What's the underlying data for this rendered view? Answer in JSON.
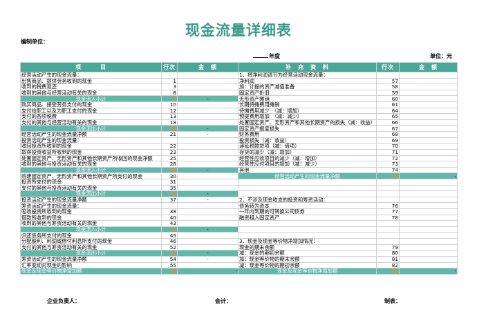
{
  "title": "现金流量详细表",
  "unit_label": "编制单位：",
  "year_label": "年度",
  "currency_label": "单位：元",
  "headers": {
    "item": "项　　　目",
    "row": "行次",
    "amount": "金　额",
    "supplement": "补　充　资　料",
    "row2": "行次",
    "amount2": "金　额"
  },
  "rows": [
    {
      "l": "经营活动产生的现金流量：",
      "ln": "",
      "la": "",
      "r": "1、将净利润调节为经营活动现金流量：",
      "rn": "",
      "ra": ""
    },
    {
      "l": "出售商品、提供劳务收到的现金",
      "ln": "1",
      "la": "",
      "r": "净利润",
      "rn": "57",
      "ra": ""
    },
    {
      "l": "收到的税费返还",
      "ln": "3",
      "la": "",
      "r": "加：计提的资产减值准备",
      "rn": "58",
      "ra": ""
    },
    {
      "l": "收到的其他与经营活动有关的现金",
      "ln": "8",
      "la": "",
      "r": "固定资产折旧",
      "rn": "59",
      "ra": ""
    },
    {
      "l": "现金流入小计",
      "ln": "9",
      "la": "-",
      "r": "无形资产摊销",
      "rn": "60",
      "ra": "",
      "lt": "sub"
    },
    {
      "l": "购买商品、接受劳务支付的现金",
      "ln": "10",
      "la": "",
      "r": "长期待摊费用摊销",
      "rn": "61",
      "ra": ""
    },
    {
      "l": "支付给职工以及为职工支付的现金",
      "ln": "12",
      "la": "",
      "r": "待摊费用减少　（减：增加）",
      "rn": "64",
      "ra": ""
    },
    {
      "l": "支付的各项税费",
      "ln": "13",
      "la": "",
      "r": "预提费用增加　（减：减少）",
      "rn": "65",
      "ra": ""
    },
    {
      "l": "支付的其他与经营活动有关的现金",
      "ln": "18",
      "la": "",
      "r": "处置固定资产、无形资产和其他长期资产的损失（减：收益）",
      "rn": "66",
      "ra": ""
    },
    {
      "l": "现金流出小计",
      "ln": "20",
      "la": "-",
      "r": "固定资产报废损失",
      "rn": "67",
      "ra": "",
      "lt": "sub"
    },
    {
      "l": "经营活动产生的现金流量净额",
      "ln": "21",
      "la": "-",
      "r": "财务费用",
      "rn": "68",
      "ra": ""
    },
    {
      "l": "投资活动产生的现金流量：",
      "ln": "",
      "la": "",
      "r": "投资损失（减：收益）",
      "rn": "69",
      "ra": ""
    },
    {
      "l": "收回投资所收到的现金",
      "ln": "22",
      "la": "",
      "r": "递延税款贷项（减：借项）",
      "rn": "70",
      "ra": ""
    },
    {
      "l": "取得投资收益所收到的现金",
      "ln": "23",
      "la": "",
      "r": "存货的减少（减：增加）",
      "rn": "71",
      "ra": ""
    },
    {
      "l": "处置固定资产、无形资产和其他长期资产所收回的现金净额",
      "ln": "25",
      "la": "",
      "r": "经营性应收项目的减少（减：增加）",
      "rn": "72",
      "ra": ""
    },
    {
      "l": "收到的其他与投资活动有关的现金",
      "ln": "28",
      "la": "",
      "r": "经营性应付项目的增加（减：减少）",
      "rn": "73",
      "ra": ""
    },
    {
      "l": "现金流入小计",
      "ln": "29",
      "la": "-",
      "r": "其他",
      "rn": "74",
      "ra": "",
      "lt": "sub"
    },
    {
      "l": "购建固定资产、无形资产和其他长期资产所支付的现金",
      "ln": "30",
      "la": "",
      "r": "经营活动产生的现金流量净额",
      "rn": "75",
      "ra": "-",
      "rt": "total"
    },
    {
      "l": "投资所支付的现金",
      "ln": "31",
      "la": "",
      "r": "",
      "rn": "",
      "ra": ""
    },
    {
      "l": "支付的其他与投资活动有关的现金",
      "ln": "35",
      "la": "",
      "r": "",
      "rn": "",
      "ra": ""
    },
    {
      "l": "现金流出小计",
      "ln": "36",
      "la": "-",
      "r": "",
      "rn": "",
      "ra": "",
      "lt": "sub"
    },
    {
      "l": "投资活动产生的现金流量净额",
      "ln": "37",
      "la": "-",
      "r": "2、不涉及现金收支的投资和筹资活动：",
      "rn": "",
      "ra": ""
    },
    {
      "l": "筹资活动产生的现金流量：",
      "ln": "",
      "la": "",
      "r": "债务转为资本",
      "rn": "76",
      "ra": ""
    },
    {
      "l": "吸收投资所收到的现金",
      "ln": "38",
      "la": "",
      "r": "一年内到期的可转换公司债券",
      "rn": "77",
      "ra": ""
    },
    {
      "l": "借款所收到的现金",
      "ln": "40",
      "la": "",
      "r": "融资租入固定资产",
      "rn": "78",
      "ra": ""
    },
    {
      "l": "收到的其他与筹资活动有关的现金",
      "ln": "43",
      "la": "",
      "r": "",
      "rn": "",
      "ra": ""
    },
    {
      "l": "现金流入小计",
      "ln": "44",
      "la": "-",
      "r": "",
      "rn": "",
      "ra": "",
      "lt": "sub"
    },
    {
      "l": "归还债务所支付的现金",
      "ln": "45",
      "la": "",
      "r": "",
      "rn": "",
      "ra": ""
    },
    {
      "l": "分配股利、利润或偿付利息所支付的现金",
      "ln": "46",
      "la": "",
      "r": "3、现金及现金等价物净增加情况：",
      "rn": "",
      "ra": ""
    },
    {
      "l": "支付的其他与筹资活动有关的现金",
      "ln": "52",
      "la": "",
      "r": "现金的期末余额",
      "rn": "79",
      "ra": ""
    },
    {
      "l": "现金流出小计",
      "ln": "53",
      "la": "-",
      "r": "减：现金的期初余额",
      "rn": "80",
      "ra": "",
      "lt": "sub"
    },
    {
      "l": "筹资活动产生的现金流量净额",
      "ln": "54",
      "la": "-",
      "r": "加：现金等价物的期末余额",
      "rn": "81",
      "ra": ""
    },
    {
      "l": "汇率变动对现金的影响",
      "ln": "55",
      "la": "",
      "r": "减：现金等价物的期初余额",
      "rn": "82",
      "ra": ""
    },
    {
      "l": "现金及现金等价物净增加额",
      "ln": "56",
      "la": "-",
      "r": "现金及现金等价物净增加额",
      "rn": "83",
      "ra": "-",
      "lt": "total",
      "rt": "total"
    }
  ],
  "footer": {
    "head": "企业负责人：",
    "accountant": "会计：",
    "preparer": "制表："
  }
}
